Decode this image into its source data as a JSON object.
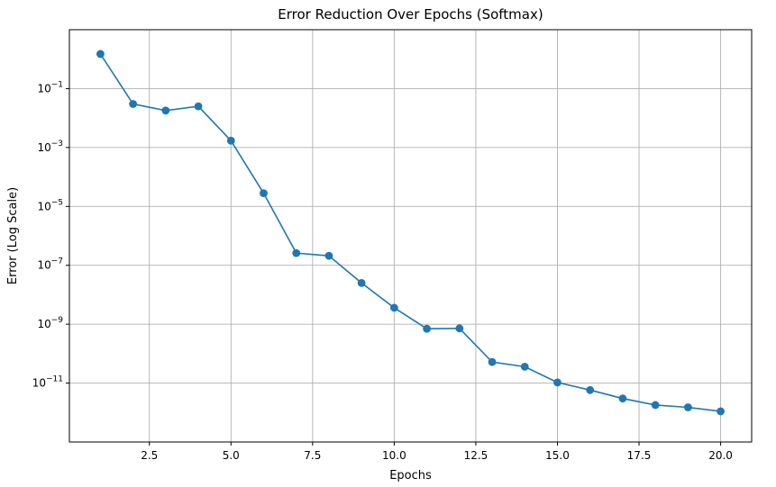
{
  "chart_data": {
    "type": "line",
    "title": "Error Reduction Over Epochs (Softmax)",
    "xlabel": "Epochs",
    "ylabel": "Error (Log Scale)",
    "y_scale": "log",
    "grid": true,
    "xlim": [
      0.05,
      20.95
    ],
    "ylim": [
      1e-13,
      10
    ],
    "x_ticks": [
      2.5,
      5.0,
      7.5,
      10.0,
      12.5,
      15.0,
      17.5,
      20.0
    ],
    "x_tick_labels": [
      "2.5",
      "5.0",
      "7.5",
      "10.0",
      "12.5",
      "15.0",
      "17.5",
      "20.0"
    ],
    "y_ticks": [
      {
        "value": 0.1,
        "base": "10",
        "exp": "−1"
      },
      {
        "value": 0.001,
        "base": "10",
        "exp": "−3"
      },
      {
        "value": 1e-05,
        "base": "10",
        "exp": "−5"
      },
      {
        "value": 1e-07,
        "base": "10",
        "exp": "−7"
      },
      {
        "value": 1e-09,
        "base": "10",
        "exp": "−9"
      },
      {
        "value": 1e-11,
        "base": "10",
        "exp": "−11"
      }
    ],
    "series": [
      {
        "color": "#1f77b4",
        "x": [
          1,
          2,
          3,
          4,
          5,
          6,
          7,
          8,
          9,
          10,
          11,
          12,
          13,
          14,
          15,
          16,
          17,
          18,
          19,
          20
        ],
        "y": [
          1.5,
          0.03,
          0.018,
          0.025,
          0.0017,
          2.8e-05,
          2.6e-07,
          2.1e-07,
          2.5e-08,
          3.6e-09,
          7e-10,
          7.2e-10,
          5.2e-11,
          3.6e-11,
          1.05e-11,
          5.8e-12,
          3e-12,
          1.8e-12,
          1.5e-12,
          1.1e-12
        ]
      }
    ]
  }
}
